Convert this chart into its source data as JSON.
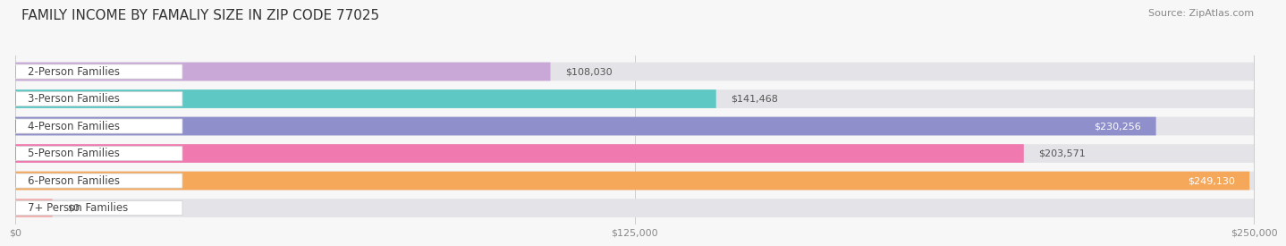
{
  "title": "FAMILY INCOME BY FAMALIY SIZE IN ZIP CODE 77025",
  "source": "Source: ZipAtlas.com",
  "categories": [
    "2-Person Families",
    "3-Person Families",
    "4-Person Families",
    "5-Person Families",
    "6-Person Families",
    "7+ Person Families"
  ],
  "values": [
    108030,
    141468,
    230256,
    203571,
    249130,
    0
  ],
  "bar_colors": [
    "#c9a8d8",
    "#5ec8c4",
    "#8f8fcc",
    "#f07ab0",
    "#f5a85a",
    "#f0b0b0"
  ],
  "bar_bg_color": "#e4e4e8",
  "xlim": [
    0,
    250000
  ],
  "xticks": [
    0,
    125000,
    250000
  ],
  "xtick_labels": [
    "$0",
    "$125,000",
    "$250,000"
  ],
  "background_color": "#f7f7f7",
  "bar_height": 0.68,
  "title_fontsize": 11,
  "label_fontsize": 8.5,
  "value_fontsize": 8,
  "source_fontsize": 8,
  "value_inside_threshold": 0.88,
  "value_colors_inside": [
    "#ffffff",
    "#ffffff",
    "#ffffff",
    "#ffffff",
    "#ffffff",
    "#555555"
  ],
  "value_colors_outside": [
    "#555555",
    "#555555",
    "#555555",
    "#555555",
    "#555555",
    "#555555"
  ]
}
